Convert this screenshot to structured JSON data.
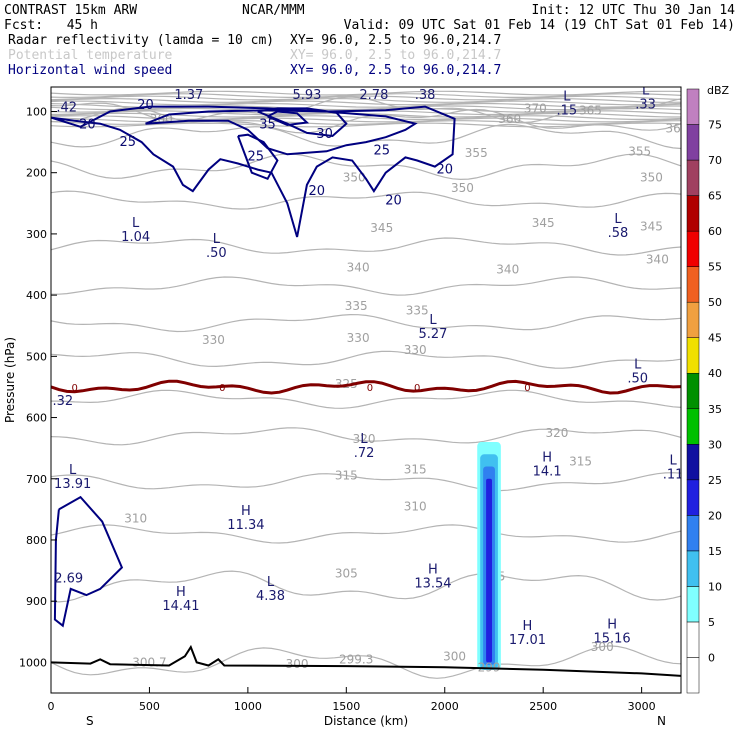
{
  "header": {
    "model": "CONTRAST 15km ARW",
    "org": "NCAR/MMM",
    "init": "Init: 12 UTC Thu 30 Jan 14",
    "fcst_label": "Fcst:",
    "fcst_value": "45 h",
    "valid": "Valid: 09 UTC Sat 01 Feb 14 (19 ChT Sat 01 Feb 14)",
    "fields": [
      {
        "name": "Radar reflectivity (lamda = 10 cm)",
        "xy": "XY=  96.0,  2.5 to  96.0,214.7",
        "color": "#000000"
      },
      {
        "name": "Potential temperature",
        "xy": "XY=  96.0,  2.5 to  96.0,214.7",
        "color": "#c8c8c8"
      },
      {
        "name": "Horizontal wind speed",
        "xy": "XY=  96.0,  2.5 to  96.0,214.7",
        "color": "#000080"
      }
    ]
  },
  "chart_data": {
    "type": "contour",
    "xlabel": "Distance (km)",
    "ylabel": "Pressure (hPa)",
    "xlim": [
      0,
      3200
    ],
    "ylim": [
      1050,
      60
    ],
    "x_ticks": [
      0,
      500,
      1000,
      1500,
      2000,
      2500,
      3000
    ],
    "y_ticks": [
      100,
      200,
      300,
      400,
      500,
      600,
      700,
      800,
      900,
      1000
    ],
    "x_end_labels": {
      "left": "S",
      "right": "N"
    },
    "colorbar": {
      "title": "dBZ",
      "levels": [
        0,
        5,
        10,
        15,
        20,
        25,
        30,
        35,
        40,
        45,
        50,
        55,
        60,
        65,
        70,
        75
      ],
      "colors": [
        "#ffffff",
        "#80ffff",
        "#40c0f0",
        "#3080f0",
        "#2020e0",
        "#1010a0",
        "#00c000",
        "#009000",
        "#f0e000",
        "#f0a040",
        "#f06020",
        "#f00000",
        "#b00000",
        "#a04060",
        "#8040a0",
        "#c080c0"
      ]
    },
    "theta_contours": {
      "color": "#b4b4b4",
      "levels": [
        300,
        305,
        310,
        315,
        320,
        325,
        330,
        335,
        340,
        345,
        350,
        355,
        360,
        365,
        370
      ],
      "labels": [
        {
          "x": 500,
          "p": 1000,
          "t": "300.7"
        },
        {
          "x": 1550,
          "p": 995,
          "t": "299.3"
        },
        {
          "x": 1250,
          "p": 1003,
          "t": "300"
        },
        {
          "x": 2050,
          "p": 990,
          "t": "300"
        },
        {
          "x": 2800,
          "p": 975,
          "t": "300"
        },
        {
          "x": 1500,
          "p": 855,
          "t": "305"
        },
        {
          "x": 2250,
          "p": 860,
          "t": "305"
        },
        {
          "x": 430,
          "p": 765,
          "t": "310"
        },
        {
          "x": 1850,
          "p": 745,
          "t": "310"
        },
        {
          "x": 1500,
          "p": 695,
          "t": "315"
        },
        {
          "x": 1850,
          "p": 685,
          "t": "315"
        },
        {
          "x": 2690,
          "p": 672,
          "t": "315"
        },
        {
          "x": 1590,
          "p": 635,
          "t": "320"
        },
        {
          "x": 2570,
          "p": 625,
          "t": "320"
        },
        {
          "x": 1500,
          "p": 545,
          "t": "325"
        },
        {
          "x": 825,
          "p": 473,
          "t": "330"
        },
        {
          "x": 1560,
          "p": 470,
          "t": "330"
        },
        {
          "x": 1850,
          "p": 490,
          "t": "330"
        },
        {
          "x": 1550,
          "p": 418,
          "t": "335"
        },
        {
          "x": 1860,
          "p": 425,
          "t": "335"
        },
        {
          "x": 1560,
          "p": 355,
          "t": "340"
        },
        {
          "x": 2320,
          "p": 358,
          "t": "340"
        },
        {
          "x": 3080,
          "p": 342,
          "t": "340"
        },
        {
          "x": 1680,
          "p": 290,
          "t": "345"
        },
        {
          "x": 2500,
          "p": 282,
          "t": "345"
        },
        {
          "x": 3050,
          "p": 288,
          "t": "345"
        },
        {
          "x": 1540,
          "p": 208,
          "t": "350"
        },
        {
          "x": 2090,
          "p": 225,
          "t": "350"
        },
        {
          "x": 3050,
          "p": 208,
          "t": "350"
        },
        {
          "x": 2160,
          "p": 168,
          "t": "355"
        },
        {
          "x": 2990,
          "p": 165,
          "t": "355"
        },
        {
          "x": 560,
          "p": 112,
          "t": "360"
        },
        {
          "x": 2330,
          "p": 112,
          "t": "360"
        },
        {
          "x": 2460,
          "p": 95,
          "t": "370"
        },
        {
          "x": 2740,
          "p": 98,
          "t": "365"
        },
        {
          "x": 3160,
          "p": 128,
          "t": "36"
        }
      ]
    },
    "wind_contours": {
      "color": "#000080",
      "levels": [
        20,
        25,
        30,
        35
      ],
      "labels": [
        {
          "x": 480,
          "p": 88,
          "t": "20"
        },
        {
          "x": 185,
          "p": 120,
          "t": "20"
        },
        {
          "x": 390,
          "p": 148,
          "t": "25"
        },
        {
          "x": 1100,
          "p": 120,
          "t": "35"
        },
        {
          "x": 1390,
          "p": 135,
          "t": "30"
        },
        {
          "x": 1680,
          "p": 162,
          "t": "25"
        },
        {
          "x": 1040,
          "p": 172,
          "t": "25"
        },
        {
          "x": 2000,
          "p": 193,
          "t": "20"
        },
        {
          "x": 1350,
          "p": 228,
          "t": "20"
        },
        {
          "x": 1740,
          "p": 244,
          "t": "20"
        }
      ]
    },
    "freezing_level": {
      "color": "#800000",
      "label": "0",
      "p_mean": 550
    },
    "extrema": [
      {
        "x": 80,
        "p": 90,
        "type": "",
        "value": ".42"
      },
      {
        "x": 700,
        "p": 70,
        "type": "L",
        "value": "1.37"
      },
      {
        "x": 1300,
        "p": 70,
        "type": "L",
        "value": "5.93"
      },
      {
        "x": 1640,
        "p": 70,
        "type": "L",
        "value": "2.78"
      },
      {
        "x": 1900,
        "p": 70,
        "type": "L",
        "value": ".38"
      },
      {
        "x": 2620,
        "p": 95,
        "type": "L",
        "value": ".15"
      },
      {
        "x": 3020,
        "p": 85,
        "type": "L",
        "value": ".33"
      },
      {
        "x": 430,
        "p": 302,
        "type": "L",
        "value": "1.04"
      },
      {
        "x": 840,
        "p": 328,
        "type": "L",
        "value": ".50"
      },
      {
        "x": 2880,
        "p": 295,
        "type": "L",
        "value": ".58"
      },
      {
        "x": 1940,
        "p": 460,
        "type": "L",
        "value": "5.27"
      },
      {
        "x": 2980,
        "p": 533,
        "type": "L",
        "value": ".50"
      },
      {
        "x": 60,
        "p": 570,
        "type": "",
        "value": ".32"
      },
      {
        "x": 1590,
        "p": 655,
        "type": "L",
        "value": ".72"
      },
      {
        "x": 110,
        "p": 705,
        "type": "L",
        "value": "13.91"
      },
      {
        "x": 2520,
        "p": 685,
        "type": "H",
        "value": "14.1"
      },
      {
        "x": 3160,
        "p": 690,
        "type": "L",
        "value": ".11"
      },
      {
        "x": 990,
        "p": 772,
        "type": "H",
        "value": "11.34"
      },
      {
        "x": 90,
        "p": 860,
        "type": "",
        "value": "2.69"
      },
      {
        "x": 660,
        "p": 905,
        "type": "H",
        "value": "14.41"
      },
      {
        "x": 1115,
        "p": 888,
        "type": "L",
        "value": "4.38"
      },
      {
        "x": 1940,
        "p": 868,
        "type": "H",
        "value": "13.54"
      },
      {
        "x": 2420,
        "p": 960,
        "type": "H",
        "value": "17.01"
      },
      {
        "x": 2850,
        "p": 958,
        "type": "H",
        "value": "15.16"
      }
    ],
    "reflectivity_column": {
      "x_center": 2225,
      "p_top": 640,
      "p_bottom": 1012,
      "max_dbz": 20,
      "label": "299"
    }
  }
}
